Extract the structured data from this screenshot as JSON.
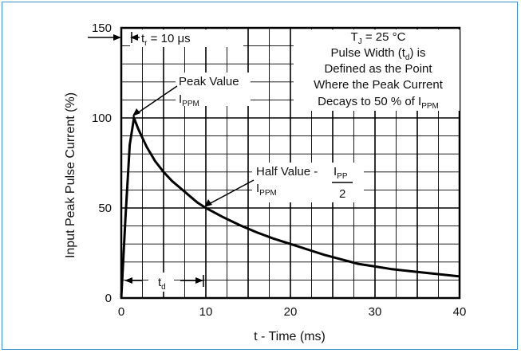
{
  "chart_data": {
    "type": "line",
    "title": "",
    "xlabel": "t - Time (ms)",
    "ylabel": "Input Peak Pulse Current (%)",
    "xlim": [
      0,
      40
    ],
    "ylim": [
      0,
      150
    ],
    "x_ticks": [
      0,
      10,
      20,
      30,
      40
    ],
    "y_ticks": [
      0,
      50,
      100,
      150
    ],
    "grid": true,
    "legend": "none",
    "series": [
      {
        "x": [
          0,
          0.5,
          1.0,
          1.5,
          2,
          3,
          4,
          5,
          6,
          7,
          8,
          9,
          10,
          12,
          14,
          16,
          18,
          20,
          22,
          24,
          26,
          28,
          30,
          32,
          34,
          36,
          38,
          40
        ],
        "values": [
          0,
          45,
          85,
          100,
          94,
          84,
          76,
          70,
          65,
          61,
          57,
          53,
          50,
          45,
          40.5,
          36.5,
          33,
          30,
          27,
          24,
          21.5,
          19,
          17.5,
          16,
          15,
          14,
          13,
          12
        ]
      }
    ],
    "annotations": {
      "rise_time": {
        "prefix": "t",
        "sub": "r",
        "suffix": " = 10 μs"
      },
      "peak": {
        "line1": "Peak Value",
        "sym": "I",
        "sub": "PPM"
      },
      "half": {
        "line1": "Half Value - ",
        "sym": "I",
        "sub": "PPM",
        "frac_num": "I",
        "frac_num_sub": "PP",
        "frac_den": "2"
      },
      "td": {
        "sym": "t",
        "sub": "d"
      },
      "conditions": {
        "l1_prefix": "T",
        "l1_sub": "J",
        "l1_suffix": " = 25 °C",
        "l2_prefix": "Pulse Width (t",
        "l2_sub": "d",
        "l2_suffix": ") is",
        "l3": "Defined as the Point",
        "l4": "Where the Peak Current",
        "l5_prefix": "Decays to 50 % of I",
        "l5_sub": "PPM"
      }
    }
  }
}
